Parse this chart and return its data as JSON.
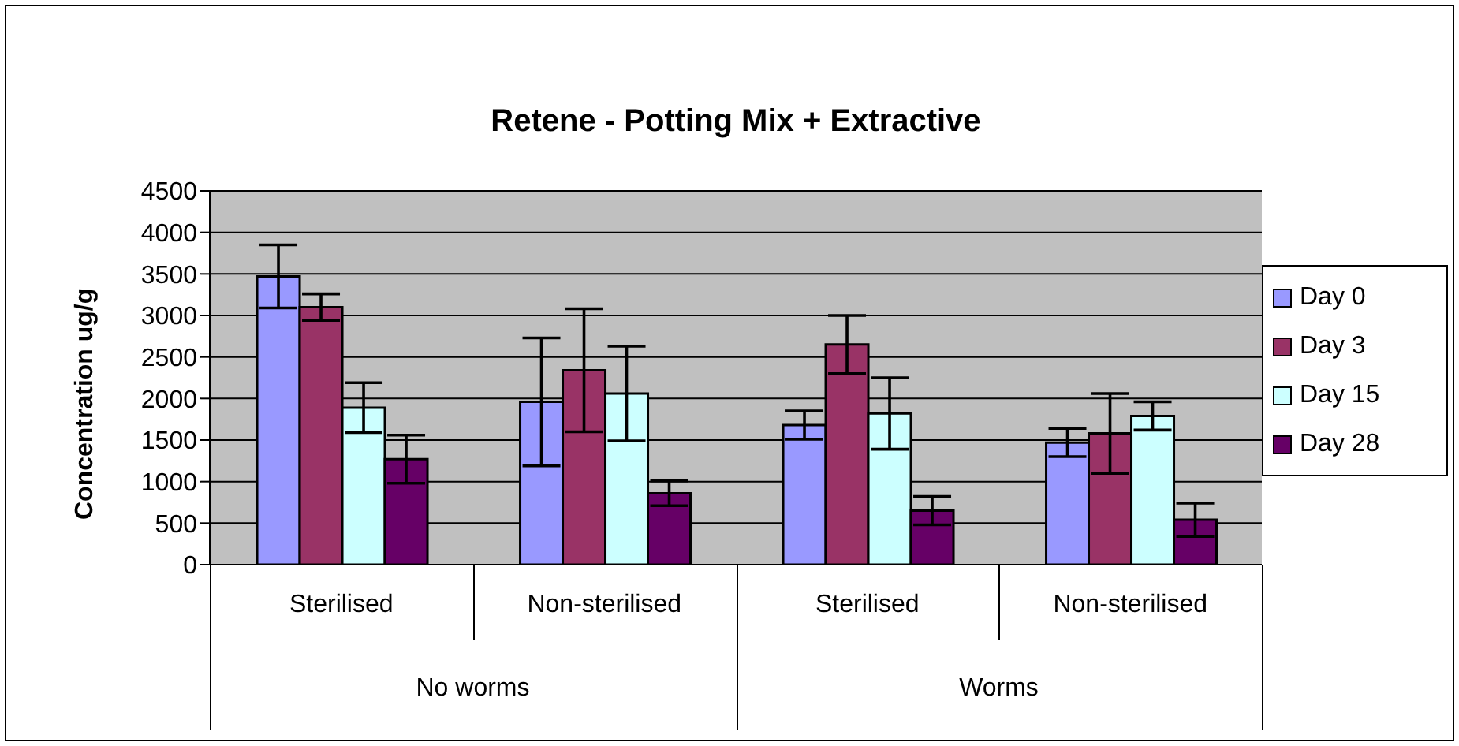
{
  "chart_data": {
    "type": "bar",
    "title": "Retene - Potting Mix + Extractive",
    "ylabel": "Concentration ug/g",
    "categories": [
      "Sterilised",
      "Non-sterilised",
      "Sterilised",
      "Non-sterilised"
    ],
    "annotations": [
      "No worms",
      "Worms"
    ],
    "series": [
      {
        "name": "Day 0",
        "color": "#9999ff",
        "values": [
          3470,
          1960,
          1680,
          1470
        ],
        "errors": [
          380,
          770,
          170,
          170
        ]
      },
      {
        "name": "Day 3",
        "color": "#993366",
        "values": [
          3100,
          2340,
          2650,
          1580
        ],
        "errors": [
          160,
          740,
          350,
          480
        ]
      },
      {
        "name": "Day 15",
        "color": "#ccffff",
        "values": [
          1890,
          2060,
          1820,
          1790
        ],
        "errors": [
          300,
          570,
          430,
          170
        ]
      },
      {
        "name": "Day 28",
        "color": "#660066",
        "values": [
          1270,
          860,
          650,
          540
        ],
        "errors": [
          290,
          150,
          170,
          200
        ]
      }
    ],
    "ylim": [
      0,
      4500
    ],
    "yticks": [
      0,
      500,
      1000,
      1500,
      2000,
      2500,
      3000,
      3500,
      4000,
      4500
    ],
    "grid": "y",
    "legend": "right"
  }
}
